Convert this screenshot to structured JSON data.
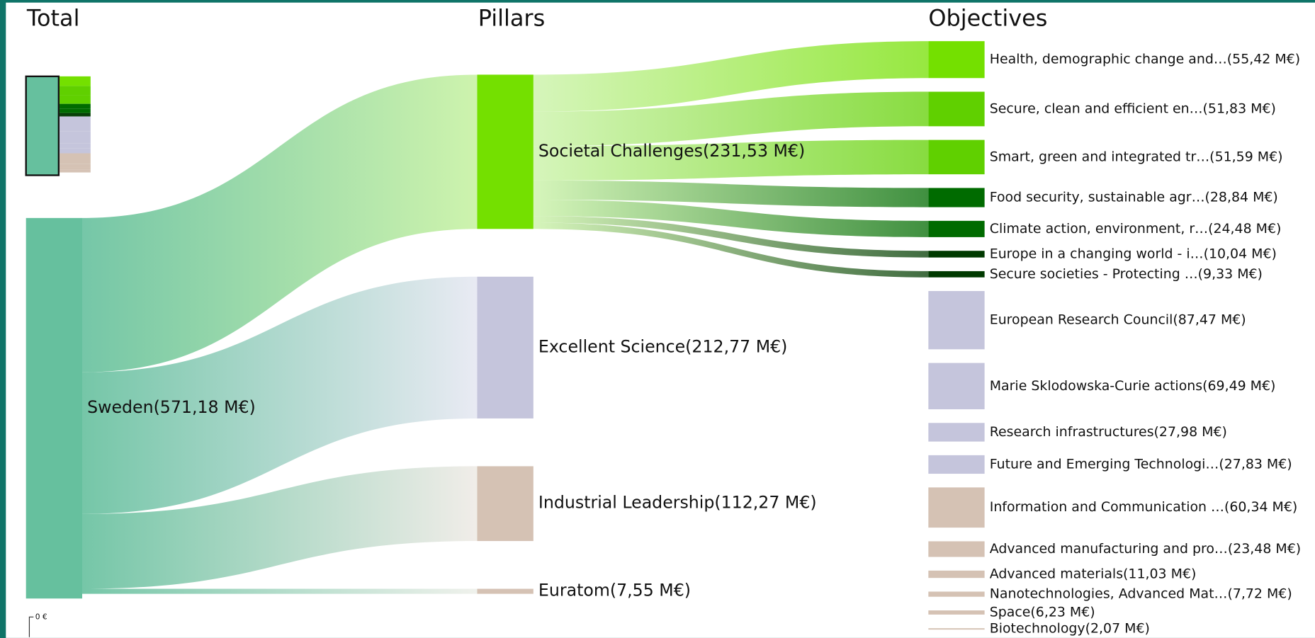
{
  "chart_data": {
    "type": "sankey",
    "columns": [
      "Total",
      "Pillars",
      "Objectives"
    ],
    "axis_label": "0 €",
    "highlighted_pillar": 0,
    "total": {
      "label": "Sweden(571,18 M€)",
      "value": 571.18,
      "color": "#66c09e"
    },
    "pillars": [
      {
        "label": "Societal Challenges(231,53 M€)",
        "value": 231.53,
        "color": "#74e000",
        "flow_color": "#c8f2a4",
        "children": [
          {
            "label": "Health, demographic change and…(55,42 M€)",
            "value": 55.42,
            "color": "#74e000"
          },
          {
            "label": "Secure, clean and efficient en…(51,83 M€)",
            "value": 51.83,
            "color": "#60d000"
          },
          {
            "label": "Smart, green and integrated tr…(51,59 M€)",
            "value": 51.59,
            "color": "#60d000"
          },
          {
            "label": "Food security, sustainable agr…(28,84 M€)",
            "value": 28.84,
            "color": "#006b00"
          },
          {
            "label": "Climate action, environment, r…(24,48 M€)",
            "value": 24.48,
            "color": "#006b00"
          },
          {
            "label": "Europe in a changing world - i…(10,04 M€)",
            "value": 10.04,
            "color": "#003a00"
          },
          {
            "label": "Secure societies - Protecting …(9,33 M€)",
            "value": 9.33,
            "color": "#003a00"
          }
        ]
      },
      {
        "label": "Excellent Science(212,77 M€)",
        "value": 212.77,
        "color": "#c5c5dc",
        "flow_color": "#e6e8f2",
        "children": [
          {
            "label": "European Research Council(87,47 M€)",
            "value": 87.47,
            "color": "#c5c5dc"
          },
          {
            "label": "Marie Sklodowska-Curie actions(69,49 M€)",
            "value": 69.49,
            "color": "#c5c5dc"
          },
          {
            "label": "Research infrastructures(27,98 M€)",
            "value": 27.98,
            "color": "#c5c5dc"
          },
          {
            "label": "Future and Emerging Technologi…(27,83 M€)",
            "value": 27.83,
            "color": "#c5c5dc"
          }
        ]
      },
      {
        "label": "Industrial Leadership(112,27 M€)",
        "value": 112.27,
        "color": "#d5c2b4",
        "flow_color": "#efebe6",
        "children": [
          {
            "label": "Information and Communication …(60,34 M€)",
            "value": 60.34,
            "color": "#d5c2b4"
          },
          {
            "label": "Advanced manufacturing and pro…(23,48 M€)",
            "value": 23.48,
            "color": "#d5c2b4"
          },
          {
            "label": "Advanced materials(11,03 M€)",
            "value": 11.03,
            "color": "#d5c2b4"
          },
          {
            "label": "Nanotechnologies, Advanced Mat…(7,72 M€)",
            "value": 7.72,
            "color": "#d5c2b4"
          },
          {
            "label": "Space(6,23 M€)",
            "value": 6.23,
            "color": "#d5c2b4"
          },
          {
            "label": "Biotechnology(2,07 M€)",
            "value": 2.07,
            "color": "#d5c2b4"
          }
        ]
      },
      {
        "label": "Euratom(7,55 M€)",
        "value": 7.55,
        "color": "#d5c2b4",
        "flow_color": "#eef0ea",
        "children": []
      }
    ]
  }
}
